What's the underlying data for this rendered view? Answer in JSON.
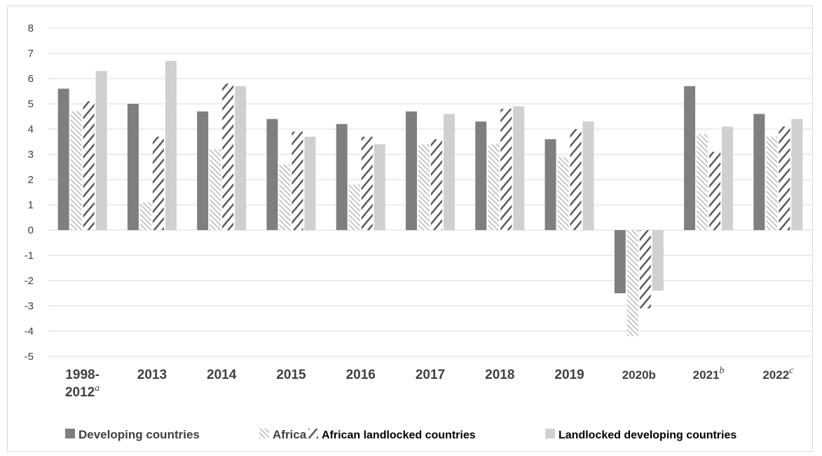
{
  "chart_data": {
    "type": "bar",
    "categories": [
      {
        "label": "1998-",
        "label2": "2012",
        "sup": "a"
      },
      {
        "label": "2013",
        "sup": ""
      },
      {
        "label": "2014",
        "sup": ""
      },
      {
        "label": "2015",
        "sup": ""
      },
      {
        "label": "2016",
        "sup": ""
      },
      {
        "label": "2017",
        "sup": ""
      },
      {
        "label": "2018",
        "sup": ""
      },
      {
        "label": "2019",
        "sup": ""
      },
      {
        "label": "2020b",
        "sup": ""
      },
      {
        "label": "2021",
        "sup": "b"
      },
      {
        "label": "2022",
        "sup": "c"
      }
    ],
    "series": [
      {
        "name": "Developing countries",
        "color": "#7f7f7f",
        "pattern": "solid",
        "values": [
          5.6,
          5.0,
          4.7,
          4.4,
          4.2,
          4.7,
          4.3,
          3.6,
          -2.5,
          5.7,
          4.6
        ]
      },
      {
        "name": "Africa",
        "color": "#a6a6a6",
        "pattern": "thin-diagonal",
        "values": [
          4.7,
          1.1,
          3.2,
          2.6,
          1.8,
          3.4,
          3.4,
          2.9,
          -4.2,
          3.8,
          3.7
        ]
      },
      {
        "name": "African landlocked countries",
        "color": "#595959",
        "pattern": "wide-diagonal",
        "values": [
          5.1,
          3.7,
          5.8,
          3.9,
          3.7,
          3.6,
          4.8,
          4.0,
          -3.1,
          3.1,
          4.1
        ]
      },
      {
        "name": "Landlocked developing countries",
        "color": "#d0d0d0",
        "pattern": "solid",
        "values": [
          6.3,
          6.7,
          5.7,
          3.7,
          3.4,
          4.6,
          4.9,
          4.3,
          -2.4,
          4.1,
          4.4
        ]
      }
    ],
    "ylim": [
      -5,
      8
    ],
    "yticks": [
      -5,
      -4,
      -3,
      -2,
      -1,
      0,
      1,
      2,
      3,
      4,
      5,
      6,
      7,
      8
    ],
    "grid": true,
    "legend_position": "bottom",
    "title": "",
    "xlabel": "",
    "ylabel": ""
  }
}
